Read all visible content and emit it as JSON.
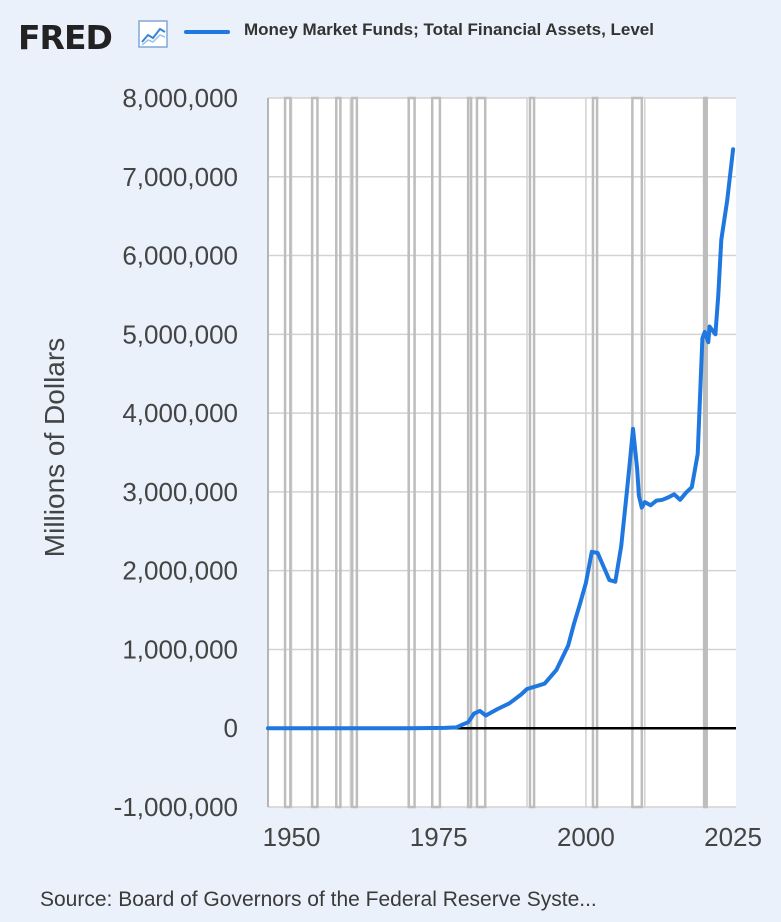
{
  "header": {
    "logo_text": "FRED",
    "logo_icon": "chart-line-icon",
    "legend_label": "Money Market Funds; Total Financial Assets, Level"
  },
  "source_text": "Source: Board of Governors of the Federal Reserve Syste...",
  "colors": {
    "background": "#eaf1fa",
    "plot_background": "#ffffff",
    "series": "#1f77e0",
    "recession_bands": "#bdbdbd",
    "zero_line": "#000000"
  },
  "chart_data": {
    "type": "line",
    "ylabel": "Millions of Dollars",
    "ylim": [
      -1000000,
      8000000
    ],
    "yticks": [
      8000000,
      7000000,
      6000000,
      5000000,
      4000000,
      3000000,
      2000000,
      1000000,
      0,
      -1000000
    ],
    "ytick_labels": [
      "8,000,000",
      "7,000,000",
      "6,000,000",
      "5,000,000",
      "4,000,000",
      "3,000,000",
      "2,000,000",
      "1,000,000",
      "0",
      "-1,000,000"
    ],
    "xlim": [
      1946,
      2025.5
    ],
    "xticks": [
      1950,
      1975,
      2000,
      2025
    ],
    "xtick_labels": [
      "1950",
      "1975",
      "2000",
      "2025"
    ],
    "grid": true,
    "series": [
      {
        "name": "Money Market Funds; Total Financial Assets, Level",
        "x": [
          1946,
          1951.9,
          1952,
          1970,
          1974,
          1976,
          1978,
          1979,
          1980,
          1981,
          1982,
          1983,
          1985,
          1987,
          1989,
          1990,
          1992,
          1993,
          1995,
          1997,
          1998,
          1999,
          2000,
          2001,
          2002,
          2003,
          2004,
          2005,
          2006,
          2007,
          2007.5,
          2008,
          2008.7,
          2009,
          2009.5,
          2010,
          2011,
          2012,
          2013,
          2014,
          2015,
          2016,
          2017,
          2018,
          2019,
          2019.8,
          2020.2,
          2020.8,
          2021,
          2022,
          2022.5,
          2023,
          2024,
          2025
        ],
        "values": [
          0,
          0,
          0,
          0,
          3000,
          4000,
          10000,
          45000,
          76000,
          186000,
          220000,
          162000,
          244000,
          316000,
          428000,
          498000,
          544000,
          566000,
          741000,
          1050000,
          1330000,
          1580000,
          1845000,
          2240000,
          2224000,
          2053000,
          1880000,
          1860000,
          2310000,
          3030000,
          3400000,
          3800000,
          3300000,
          2950000,
          2800000,
          2870000,
          2830000,
          2890000,
          2900000,
          2930000,
          2970000,
          2900000,
          2990000,
          3060000,
          3480000,
          4950000,
          5030000,
          4900000,
          5100000,
          5000000,
          5500000,
          6200000,
          6700000,
          7350000
        ]
      }
    ],
    "recessions": [
      [
        1948.9,
        1949.8
      ],
      [
        1953.5,
        1954.4
      ],
      [
        1957.6,
        1958.3
      ],
      [
        1960.3,
        1961.1
      ],
      [
        1969.9,
        1970.9
      ],
      [
        1973.9,
        1975.2
      ],
      [
        1980.0,
        1980.5
      ],
      [
        1981.5,
        1982.9
      ],
      [
        1990.5,
        1991.2
      ],
      [
        2001.2,
        2001.9
      ],
      [
        2007.9,
        2009.5
      ],
      [
        2020.1,
        2020.3
      ]
    ]
  }
}
